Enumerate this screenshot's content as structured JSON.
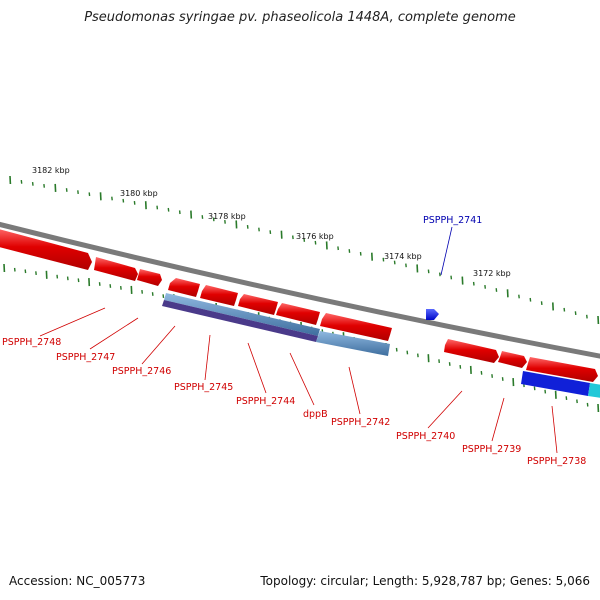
{
  "title": "Pseudomonas syringae pv. phaseolicola 1448A, complete genome",
  "accession": "Accession: NC_005773",
  "topology": "Topology: circular; Length: 5,928,787 bp; Genes: 5,066",
  "colors": {
    "forward_gene": "#e00000",
    "reverse_gene": "#e00000",
    "blue_gene": "#0010e0",
    "backbone": "#7a7a7a",
    "ticks": "#2a7a2a",
    "label_red": "#d00000",
    "label_blue": "#0000b0",
    "feature_steel": "#5b8fc0",
    "feature_purple": "#4a3a8a",
    "feature_cyan": "#22c8d8"
  },
  "scale": {
    "tick_labels": [
      "3182 kbp",
      "3180 kbp",
      "3178 kbp",
      "3176 kbp",
      "3174 kbp",
      "3172 kbp"
    ]
  },
  "genes": [
    {
      "label": "PSPPH_2748"
    },
    {
      "label": "PSPPH_2747"
    },
    {
      "label": "PSPPH_2746"
    },
    {
      "label": "PSPPH_2745"
    },
    {
      "label": "PSPPH_2744"
    },
    {
      "label": "dppB"
    },
    {
      "label": "PSPPH_2742"
    },
    {
      "label": "PSPPH_2741"
    },
    {
      "label": "PSPPH_2740"
    },
    {
      "label": "PSPPH_2739"
    },
    {
      "label": "PSPPH_2738"
    }
  ]
}
